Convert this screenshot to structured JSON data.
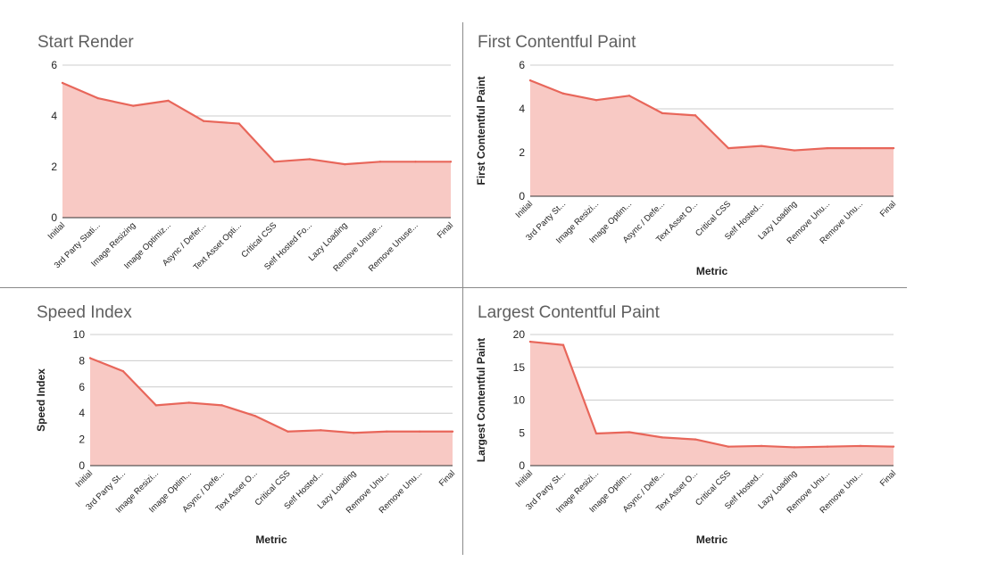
{
  "chart_data": [
    {
      "type": "area",
      "title": "Start Render",
      "xlabel": "",
      "ylabel": "",
      "categories": [
        "Initial",
        "3rd Party Stati...",
        "Image Resizing",
        "Image Optimiz...",
        "Async / Defer...",
        "Text Asset Opti...",
        "Critical CSS",
        "Self Hosted Fo...",
        "Lazy Loading",
        "Remove Unuse...",
        "Remove Unuse...",
        "Final"
      ],
      "values": [
        5.3,
        4.7,
        4.4,
        4.6,
        3.8,
        3.7,
        2.2,
        2.3,
        2.1,
        2.2,
        2.2,
        2.2
      ],
      "ylim": [
        0,
        6
      ],
      "yticks": [
        "0",
        "2",
        "4",
        "6"
      ],
      "grid": true,
      "color": "#e8665a",
      "fill": "#f8c9c4"
    },
    {
      "type": "area",
      "title": "First Contentful Paint",
      "xlabel": "Metric",
      "ylabel": "First Contentful Paint",
      "categories": [
        "Initial",
        "3rd Party St...",
        "Image Resizi...",
        "Image Optim...",
        "Async / Defe...",
        "Text Asset O...",
        "Critical CSS",
        "Self Hosted...",
        "Lazy Loading",
        "Remove Unu...",
        "Remove Unu...",
        "Final"
      ],
      "values": [
        5.3,
        4.7,
        4.4,
        4.6,
        3.8,
        3.7,
        2.2,
        2.3,
        2.1,
        2.2,
        2.2,
        2.2
      ],
      "ylim": [
        0,
        6
      ],
      "yticks": [
        "0",
        "2",
        "4",
        "6"
      ],
      "grid": true,
      "color": "#e8665a",
      "fill": "#f8c9c4"
    },
    {
      "type": "area",
      "title": "Speed Index",
      "xlabel": "Metric",
      "ylabel": "Speed Index",
      "categories": [
        "Initial",
        "3rd Party St...",
        "Image Resizi...",
        "Image Optim...",
        "Async / Defe...",
        "Text Asset O...",
        "Critical CSS",
        "Self Hosted...",
        "Lazy Loading",
        "Remove Unu...",
        "Remove Unu...",
        "Final"
      ],
      "values": [
        8.2,
        7.2,
        4.6,
        4.8,
        4.6,
        3.8,
        2.6,
        2.7,
        2.5,
        2.6,
        2.6,
        2.6
      ],
      "ylim": [
        0,
        10
      ],
      "yticks": [
        "0",
        "2",
        "4",
        "6",
        "8",
        "10"
      ],
      "grid": true,
      "color": "#e8665a",
      "fill": "#f8c9c4"
    },
    {
      "type": "area",
      "title": "Largest Contentful Paint",
      "xlabel": "Metric",
      "ylabel": "Largest Contentful Paint",
      "categories": [
        "Initial",
        "3rd Party St...",
        "Image Resizi...",
        "Image Optim...",
        "Async / Defe...",
        "Text Asset O...",
        "Critical CSS",
        "Self Hosted...",
        "Lazy Loading",
        "Remove Unu...",
        "Remove Unu...",
        "Final"
      ],
      "values": [
        18.9,
        18.4,
        4.9,
        5.1,
        4.3,
        4.0,
        2.9,
        3.0,
        2.8,
        2.9,
        3.0,
        2.9
      ],
      "ylim": [
        0,
        20
      ],
      "yticks": [
        "0",
        "5",
        "10",
        "15",
        "20"
      ],
      "grid": true,
      "color": "#e8665a",
      "fill": "#f8c9c4"
    }
  ]
}
